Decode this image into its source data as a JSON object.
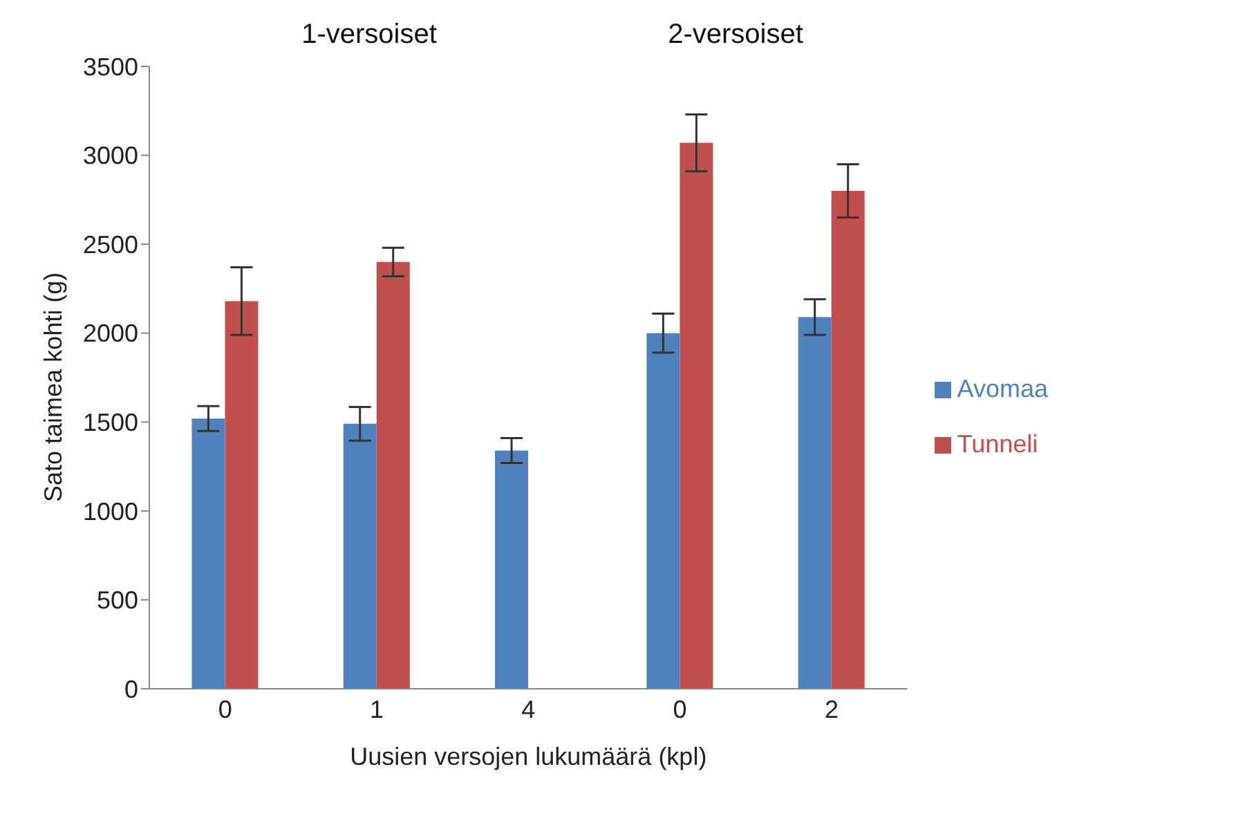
{
  "chart_data": {
    "type": "bar",
    "xlabel": "Uusien versojen lukumäärä (kpl)",
    "ylabel": "Sato taimea kohti (g)",
    "categories": [
      "0",
      "1",
      "4",
      "0",
      "2"
    ],
    "series": [
      {
        "name": "Avomaa",
        "color": "#4f81bd",
        "values": [
          1520,
          1490,
          1340,
          2000,
          2090
        ],
        "errors": [
          70,
          95,
          70,
          110,
          100
        ]
      },
      {
        "name": "Tunneli",
        "color": "#c0504d",
        "values": [
          2180,
          2400,
          null,
          3070,
          2800
        ],
        "errors": [
          190,
          80,
          null,
          160,
          150
        ]
      }
    ],
    "ylim": [
      0,
      3500
    ],
    "yticks": [
      0,
      500,
      1000,
      1500,
      2000,
      2500,
      3000,
      3500
    ],
    "legend": "right",
    "annotations": [
      "1-versoiset",
      "2-versoiset"
    ]
  }
}
